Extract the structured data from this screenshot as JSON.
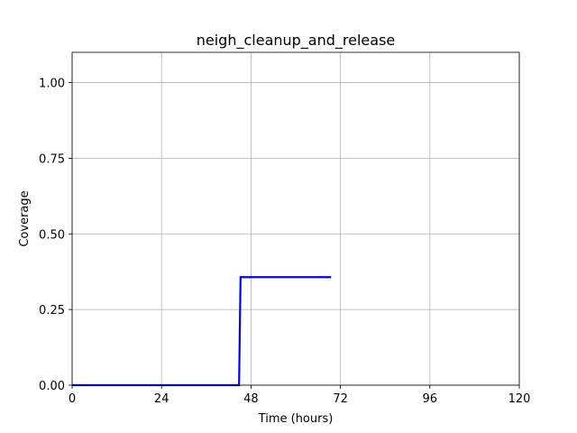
{
  "chart_data": {
    "type": "line",
    "title": "neigh_cleanup_and_release",
    "xlabel": "Time (hours)",
    "ylabel": "Coverage",
    "xlim": [
      0,
      120
    ],
    "ylim": [
      0,
      1.1
    ],
    "xticks": [
      0,
      24,
      48,
      72,
      96,
      120
    ],
    "xtick_labels": [
      "0",
      "24",
      "48",
      "72",
      "96",
      "120"
    ],
    "yticks": [
      0,
      0.25,
      0.5,
      0.75,
      1.0
    ],
    "ytick_labels": [
      "0.00",
      "0.25",
      "0.50",
      "0.75",
      "1.00"
    ],
    "grid": true,
    "series": [
      {
        "color": "#0000ff",
        "x": [
          0,
          44.8,
          45.2,
          69.5
        ],
        "y": [
          0,
          0,
          0.357,
          0.357
        ]
      }
    ]
  }
}
